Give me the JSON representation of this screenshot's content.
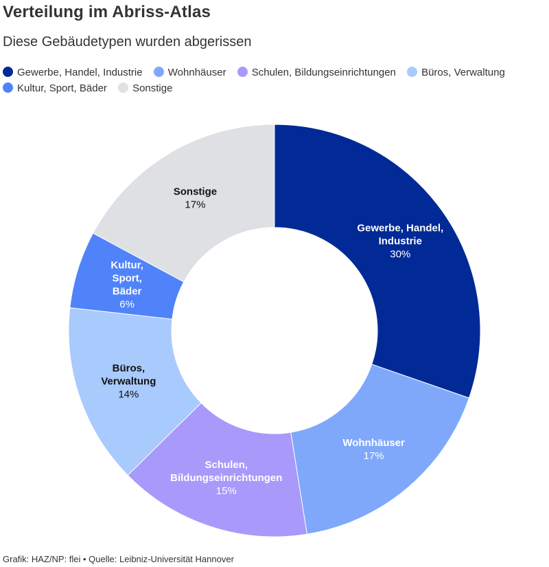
{
  "title": "Verteilung im Abriss-Atlas",
  "subtitle": "Diese Gebäudetypen wurden abgerissen",
  "footer": "Grafik: HAZ/NP: flei • Quelle: Leibniz-Universität Hannover",
  "chart_data": {
    "type": "pie",
    "title": "Verteilung im Abriss-Atlas",
    "subtitle": "Diese Gebäudetypen wurden abgerissen",
    "legend_position": "top",
    "donut": true,
    "slices": [
      {
        "label": "Gewerbe, Handel, Industrie",
        "lines": [
          "Gewerbe, Handel,",
          "Industrie"
        ],
        "value": 30,
        "value_label": "30%",
        "color": "#012A96",
        "text_color": "#ffffff"
      },
      {
        "label": "Wohnhäuser",
        "lines": [
          "Wohnhäuser"
        ],
        "value": 17,
        "value_label": "17%",
        "color": "#7FA8FB",
        "text_color": "#ffffff"
      },
      {
        "label": "Schulen, Bildungseinrichtungen",
        "lines": [
          "Schulen,",
          "Bildungseinrichtungen"
        ],
        "value": 15,
        "value_label": "15%",
        "color": "#A899FB",
        "text_color": "#ffffff"
      },
      {
        "label": "Büros, Verwaltung",
        "lines": [
          "Büros,",
          "Verwaltung"
        ],
        "value": 14,
        "value_label": "14%",
        "color": "#A9CAFC",
        "text_color": "#111111"
      },
      {
        "label": "Kultur, Sport, Bäder",
        "lines": [
          "Kultur,",
          "Sport,",
          "Bäder"
        ],
        "value": 6,
        "value_label": "6%",
        "color": "#5083F9",
        "text_color": "#ffffff"
      },
      {
        "label": "Sonstige",
        "lines": [
          "Sonstige"
        ],
        "value": 17,
        "value_label": "17%",
        "color": "#DEE0E3",
        "text_color": "#111111"
      }
    ]
  }
}
